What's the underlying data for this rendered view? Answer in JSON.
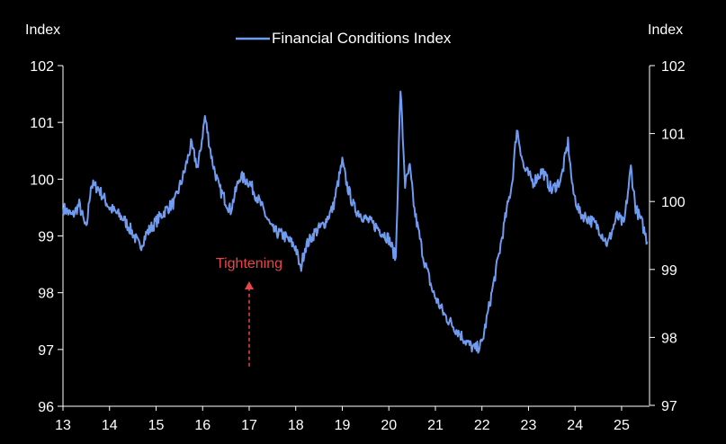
{
  "chart_data": {
    "type": "line",
    "left_axis": {
      "title": "Index",
      "ylim": [
        96,
        102
      ],
      "ticks": [
        "96",
        "97",
        "98",
        "99",
        "100",
        "101",
        "102"
      ]
    },
    "right_axis": {
      "title": "Index",
      "ylim": [
        97,
        102
      ],
      "ticks": [
        "97",
        "98",
        "99",
        "100",
        "101",
        "102"
      ]
    },
    "x_axis": {
      "xlim": [
        13,
        25.6
      ],
      "ticks": [
        "13",
        "14",
        "15",
        "16",
        "17",
        "18",
        "19",
        "20",
        "21",
        "22",
        "23",
        "24",
        "25"
      ]
    },
    "legend": {
      "position": "top-center",
      "entries": [
        "Financial Conditions Index"
      ]
    },
    "grid": false,
    "series": [
      {
        "name": "Financial Conditions Index",
        "color": "#6f9cf0",
        "axis": "left",
        "points": [
          [
            13.0,
            99.5
          ],
          [
            13.2,
            99.35
          ],
          [
            13.35,
            99.55
          ],
          [
            13.5,
            99.1
          ],
          [
            13.6,
            99.9
          ],
          [
            13.75,
            99.85
          ],
          [
            14.0,
            99.5
          ],
          [
            14.3,
            99.3
          ],
          [
            14.5,
            99.05
          ],
          [
            14.65,
            98.8
          ],
          [
            14.8,
            99.05
          ],
          [
            15.0,
            99.25
          ],
          [
            15.2,
            99.45
          ],
          [
            15.4,
            99.6
          ],
          [
            15.6,
            100.1
          ],
          [
            15.75,
            100.6
          ],
          [
            15.9,
            100.2
          ],
          [
            16.05,
            101.1
          ],
          [
            16.2,
            100.35
          ],
          [
            16.35,
            99.85
          ],
          [
            16.6,
            99.45
          ],
          [
            16.8,
            100.05
          ],
          [
            17.0,
            99.95
          ],
          [
            17.25,
            99.55
          ],
          [
            17.5,
            99.1
          ],
          [
            17.75,
            99.0
          ],
          [
            18.0,
            98.8
          ],
          [
            18.1,
            98.4
          ],
          [
            18.2,
            98.8
          ],
          [
            18.4,
            99.05
          ],
          [
            18.6,
            99.2
          ],
          [
            18.8,
            99.5
          ],
          [
            19.0,
            100.3
          ],
          [
            19.1,
            99.9
          ],
          [
            19.25,
            99.5
          ],
          [
            19.5,
            99.3
          ],
          [
            19.75,
            99.15
          ],
          [
            20.0,
            98.95
          ],
          [
            20.15,
            98.6
          ],
          [
            20.25,
            101.6
          ],
          [
            20.35,
            99.9
          ],
          [
            20.45,
            100.2
          ],
          [
            20.55,
            99.45
          ],
          [
            20.75,
            98.6
          ],
          [
            20.95,
            98.0
          ],
          [
            21.2,
            97.6
          ],
          [
            21.45,
            97.35
          ],
          [
            21.7,
            97.1
          ],
          [
            21.85,
            97.0
          ],
          [
            22.0,
            97.1
          ],
          [
            22.2,
            97.95
          ],
          [
            22.35,
            98.6
          ],
          [
            22.5,
            99.3
          ],
          [
            22.65,
            99.95
          ],
          [
            22.75,
            100.9
          ],
          [
            22.9,
            100.2
          ],
          [
            23.1,
            99.95
          ],
          [
            23.3,
            100.15
          ],
          [
            23.5,
            99.8
          ],
          [
            23.7,
            100.0
          ],
          [
            23.85,
            100.65
          ],
          [
            23.95,
            99.8
          ],
          [
            24.1,
            99.4
          ],
          [
            24.3,
            99.3
          ],
          [
            24.5,
            99.15
          ],
          [
            24.7,
            98.85
          ],
          [
            24.9,
            99.35
          ],
          [
            25.05,
            99.2
          ],
          [
            25.2,
            100.2
          ],
          [
            25.3,
            99.5
          ],
          [
            25.45,
            99.2
          ],
          [
            25.55,
            98.9
          ]
        ]
      }
    ],
    "annotations": [
      {
        "text": "Tightening",
        "x": 17.0,
        "y": 98.5,
        "arrow_from": 96.7,
        "arrow_to": 98.2,
        "color": "#e8464a"
      }
    ]
  }
}
